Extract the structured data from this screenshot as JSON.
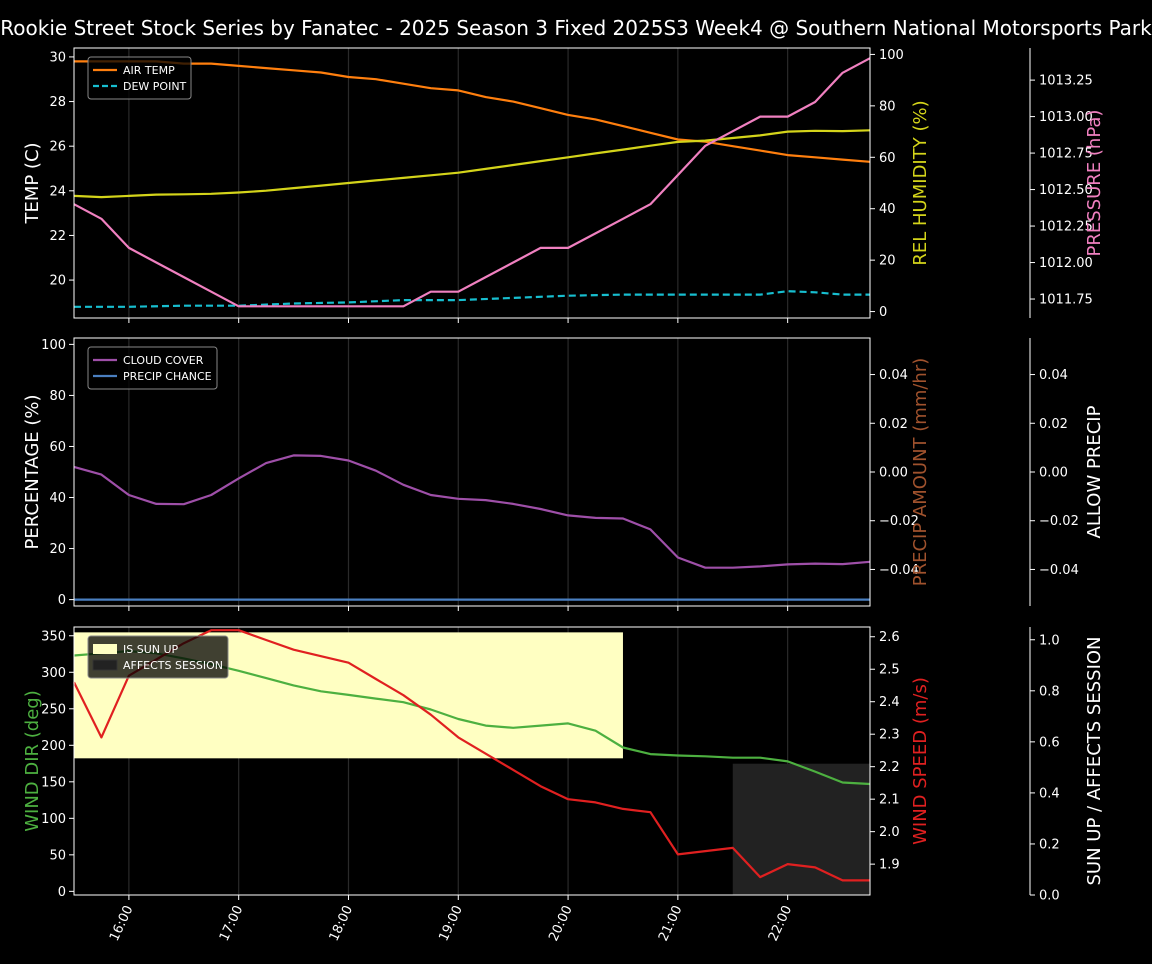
{
  "title": "Rookie Street Stock Series by Fanatec - 2025 Season 3 Fixed 2025S3 Week4 @ Southern National Motorsports Park",
  "colors": {
    "air_temp": "#ff7f0e",
    "dew_point": "#17becf",
    "humidity": "#d4d41a",
    "pressure": "#f080c0",
    "cloud": "#9e4fa8",
    "precip_chance": "#4a7fc0",
    "precip_amount": "#a0522d",
    "wind_dir": "#4db040",
    "wind_speed": "#e02020",
    "sun_up": "#ffffc2",
    "affects_session": "#222222",
    "vline": "#2a2a2a"
  },
  "chart_data": [
    {
      "type": "line",
      "x_ticks": [
        "16:00",
        "17:00",
        "18:00",
        "19:00",
        "20:00",
        "21:00",
        "22:00"
      ],
      "xlim": [
        "15:30",
        "22:45"
      ],
      "y_axes": [
        {
          "label": "TEMP (C)",
          "ticks": [
            20,
            22,
            24,
            26,
            28,
            30
          ],
          "lim": [
            18.3,
            30.4
          ]
        },
        {
          "label": "REL HUMIDITY (%)",
          "ticks": [
            0,
            20,
            40,
            60,
            80,
            100
          ],
          "lim": [
            -2.5,
            102.5
          ]
        },
        {
          "label": "PRESSURE (hPa)",
          "ticks": [
            "1011.75",
            "1012.00",
            "1012.25",
            "1012.50",
            "1012.75",
            "1013.00",
            "1013.25"
          ],
          "lim": [
            1011.62,
            1013.47
          ]
        }
      ],
      "legend": {
        "placement": "upper-left",
        "entries": [
          "AIR TEMP",
          "DEW POINT"
        ]
      },
      "series": [
        {
          "name": "AIR TEMP",
          "axis": 0,
          "style": "solid",
          "x": [
            "15:30",
            "15:45",
            "16:00",
            "16:15",
            "16:30",
            "16:45",
            "17:00",
            "17:15",
            "17:30",
            "17:45",
            "18:00",
            "18:15",
            "18:30",
            "18:45",
            "19:00",
            "19:15",
            "19:30",
            "19:45",
            "20:00",
            "20:15",
            "20:30",
            "20:45",
            "21:00",
            "21:15",
            "21:30",
            "21:45",
            "22:00",
            "22:15",
            "22:30",
            "22:45"
          ],
          "values": [
            29.8,
            29.8,
            29.8,
            29.8,
            29.7,
            29.7,
            29.6,
            29.5,
            29.4,
            29.3,
            29.1,
            29.0,
            28.8,
            28.6,
            28.5,
            28.2,
            28.0,
            27.7,
            27.4,
            27.2,
            26.9,
            26.6,
            26.3,
            26.2,
            26.0,
            25.8,
            25.6,
            25.5,
            25.4,
            25.3
          ]
        },
        {
          "name": "DEW POINT",
          "axis": 0,
          "style": "dashed",
          "x": [
            "15:30",
            "16:00",
            "16:30",
            "17:00",
            "17:30",
            "18:00",
            "18:30",
            "19:00",
            "19:30",
            "20:00",
            "20:30",
            "21:00",
            "21:30",
            "21:45",
            "22:00",
            "22:15",
            "22:30",
            "22:45"
          ],
          "values": [
            18.8,
            18.8,
            18.85,
            18.85,
            18.95,
            19.0,
            19.1,
            19.1,
            19.2,
            19.3,
            19.35,
            19.35,
            19.35,
            19.35,
            19.5,
            19.45,
            19.35,
            19.35
          ]
        },
        {
          "name": "REL HUMIDITY",
          "axis": 1,
          "style": "solid",
          "x": [
            "15:30",
            "15:45",
            "16:00",
            "16:15",
            "16:30",
            "16:45",
            "17:00",
            "17:15",
            "17:30",
            "17:45",
            "18:00",
            "18:15",
            "18:30",
            "18:45",
            "19:00",
            "19:15",
            "19:30",
            "19:45",
            "20:00",
            "20:15",
            "20:30",
            "20:45",
            "21:00",
            "21:15",
            "21:30",
            "21:45",
            "22:00",
            "22:15",
            "22:30",
            "22:45"
          ],
          "values": [
            45,
            44.5,
            45,
            45.5,
            45.6,
            45.8,
            46.3,
            47,
            48,
            49,
            50,
            51,
            52,
            53,
            54,
            55.5,
            57,
            58.5,
            60,
            61.5,
            63,
            64.5,
            66,
            66.5,
            67.5,
            68.5,
            70,
            70.3,
            70.2,
            70.5
          ]
        },
        {
          "name": "PRESSURE",
          "axis": 2,
          "style": "solid",
          "x": [
            "15:30",
            "15:45",
            "16:00",
            "16:15",
            "16:30",
            "16:45",
            "17:00",
            "17:15",
            "17:30",
            "17:45",
            "18:00",
            "18:15",
            "18:30",
            "18:45",
            "19:00",
            "19:15",
            "19:30",
            "19:45",
            "20:00",
            "20:15",
            "20:30",
            "20:45",
            "21:00",
            "21:15",
            "21:30",
            "21:45",
            "22:00",
            "22:15",
            "22:30",
            "22:45"
          ],
          "values": [
            1012.4,
            1012.3,
            1012.1,
            1012.0,
            1011.9,
            1011.8,
            1011.7,
            1011.7,
            1011.7,
            1011.7,
            1011.7,
            1011.7,
            1011.7,
            1011.8,
            1011.8,
            1011.9,
            1012.0,
            1012.1,
            1012.1,
            1012.2,
            1012.3,
            1012.4,
            1012.6,
            1012.8,
            1012.9,
            1013.0,
            1013.0,
            1013.1,
            1013.3,
            1013.4
          ]
        }
      ]
    },
    {
      "type": "line",
      "x_ticks": [
        "16:00",
        "17:00",
        "18:00",
        "19:00",
        "20:00",
        "21:00",
        "22:00"
      ],
      "xlim": [
        "15:30",
        "22:45"
      ],
      "y_axes": [
        {
          "label": "PERCENTAGE (%)",
          "ticks": [
            0,
            20,
            40,
            60,
            80,
            100
          ],
          "lim": [
            -2.5,
            102.5
          ]
        },
        {
          "label": "PRECIP AMOUNT (mm/hr)",
          "ticks": [
            "0.04",
            "0.02",
            "0.00",
            "−0.02",
            "−0.04"
          ],
          "lim": [
            -0.055,
            0.055
          ]
        },
        {
          "label": "ALLOW PRECIP",
          "ticks": [
            "0.04",
            "0.02",
            "0.00",
            "−0.02",
            "−0.04"
          ],
          "lim": [
            -0.055,
            0.055
          ]
        }
      ],
      "legend": {
        "placement": "upper-left",
        "entries": [
          "CLOUD COVER",
          "PRECIP CHANCE"
        ]
      },
      "series": [
        {
          "name": "CLOUD COVER",
          "axis": 0,
          "x": [
            "15:30",
            "15:45",
            "16:00",
            "16:15",
            "16:30",
            "16:45",
            "17:00",
            "17:15",
            "17:30",
            "17:45",
            "18:00",
            "18:15",
            "18:30",
            "18:45",
            "19:00",
            "19:15",
            "19:30",
            "19:45",
            "20:00",
            "20:15",
            "20:30",
            "20:45",
            "21:00",
            "21:15",
            "21:30",
            "21:45",
            "22:00",
            "22:15",
            "22:30",
            "22:45"
          ],
          "values": [
            52,
            49,
            41,
            37.5,
            37.4,
            41,
            47.5,
            53.5,
            56.5,
            56.3,
            54.5,
            50.5,
            45,
            41,
            39.5,
            39,
            37.5,
            35.5,
            33,
            32,
            31.8,
            27.5,
            16.5,
            12.5,
            12.5,
            13,
            13.8,
            14.1,
            13.9,
            14.8
          ]
        },
        {
          "name": "PRECIP CHANCE",
          "axis": 0,
          "x": [
            "15:30",
            "22:45"
          ],
          "values": [
            0,
            0
          ]
        }
      ]
    },
    {
      "type": "line",
      "x_ticks": [
        "16:00",
        "17:00",
        "18:00",
        "19:00",
        "20:00",
        "21:00",
        "22:00"
      ],
      "xlim": [
        "15:30",
        "22:45"
      ],
      "y_axes": [
        {
          "label": "WIND DIR (deg)",
          "ticks": [
            0,
            50,
            100,
            150,
            200,
            250,
            300,
            350
          ],
          "lim": [
            -5,
            362
          ]
        },
        {
          "label": "WIND SPEED (m/s)",
          "ticks": [
            "1.9",
            "2.0",
            "2.1",
            "2.2",
            "2.3",
            "2.4",
            "2.5",
            "2.6"
          ],
          "lim": [
            1.805,
            2.63
          ]
        },
        {
          "label": "SUN UP / AFFECTS SESSION",
          "ticks": [
            "0.0",
            "0.2",
            "0.4",
            "0.6",
            "0.8",
            "1.0"
          ],
          "lim": [
            0,
            1.05
          ]
        }
      ],
      "legend": {
        "placement": "upper-left",
        "entries": [
          "IS SUN UP",
          "AFFECTS SESSION"
        ]
      },
      "shaded": [
        {
          "name": "IS SUN UP",
          "x_start": "15:30",
          "x_end": "20:30"
        },
        {
          "name": "AFFECTS SESSION",
          "x_start": "21:30",
          "x_end": "22:45"
        }
      ],
      "series": [
        {
          "name": "WIND DIR",
          "axis": 0,
          "x": [
            "15:30",
            "15:45",
            "16:00",
            "16:15",
            "16:30",
            "16:45",
            "17:00",
            "17:15",
            "17:30",
            "17:45",
            "18:00",
            "18:15",
            "18:30",
            "18:45",
            "19:00",
            "19:15",
            "19:30",
            "19:45",
            "20:00",
            "20:15",
            "20:30",
            "20:45",
            "21:00",
            "21:15",
            "21:30",
            "21:45",
            "22:00",
            "22:15",
            "22:30",
            "22:45"
          ],
          "values": [
            323,
            326,
            329,
            326,
            319,
            311,
            302,
            292,
            282,
            274,
            269,
            264,
            259,
            249,
            236,
            227,
            224,
            227,
            230,
            220,
            197,
            188,
            186,
            185,
            183,
            183,
            178,
            164,
            149,
            147
          ]
        },
        {
          "name": "WIND SPEED",
          "axis": 1,
          "x": [
            "15:30",
            "15:45",
            "16:00",
            "16:15",
            "16:30",
            "16:45",
            "17:00",
            "17:15",
            "17:30",
            "17:45",
            "18:00",
            "18:15",
            "18:30",
            "18:45",
            "19:00",
            "19:15",
            "19:30",
            "19:45",
            "20:00",
            "20:15",
            "20:30",
            "20:45",
            "21:00",
            "21:15",
            "21:30",
            "21:45",
            "22:00",
            "22:15",
            "22:30",
            "22:45"
          ],
          "values": [
            2.46,
            2.29,
            2.48,
            2.53,
            2.58,
            2.62,
            2.62,
            2.59,
            2.56,
            2.54,
            2.52,
            2.47,
            2.42,
            2.36,
            2.29,
            2.24,
            2.19,
            2.14,
            2.1,
            2.09,
            2.07,
            2.06,
            1.93,
            1.94,
            1.95,
            1.86,
            1.9,
            1.89,
            1.85,
            1.85
          ]
        }
      ]
    }
  ]
}
